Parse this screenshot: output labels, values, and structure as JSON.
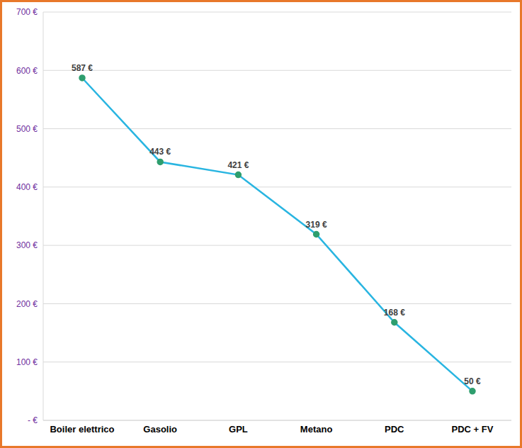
{
  "chart_data": {
    "type": "line",
    "categories": [
      "Boiler elettrico",
      "Gasolio",
      "GPL",
      "Metano",
      "PDC",
      "PDC + FV"
    ],
    "values": [
      587,
      443,
      421,
      319,
      168,
      50
    ],
    "value_labels": [
      "587 €",
      "443 €",
      "421 €",
      "319 €",
      "168 €",
      "50 €"
    ],
    "color": "#29b5e1",
    "marker": "circle",
    "ylim": [
      0,
      700
    ],
    "yticks": [
      {
        "value": 0,
        "label": "- €"
      },
      {
        "value": 100,
        "label": "100 €"
      },
      {
        "value": 200,
        "label": "200 €"
      },
      {
        "value": 300,
        "label": "300 €"
      },
      {
        "value": 400,
        "label": "400 €"
      },
      {
        "value": 500,
        "label": "500 €"
      },
      {
        "value": 600,
        "label": "600 €"
      },
      {
        "value": 700,
        "label": "700 €"
      }
    ],
    "grid": true,
    "data_labels": true
  }
}
